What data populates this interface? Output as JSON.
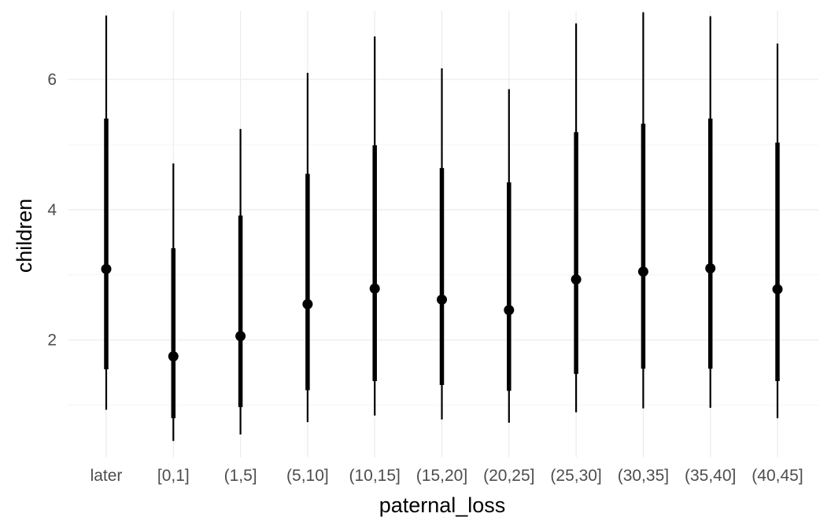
{
  "chart_data": {
    "type": "pointrange",
    "xlabel": "paternal_loss",
    "ylabel": "children",
    "categories": [
      "later",
      "[0,1]",
      "(1,5]",
      "(5,10]",
      "(10,15]",
      "(15,20]",
      "(20,25]",
      "(25,30]",
      "(30,35]",
      "(35,40]",
      "(40,45]"
    ],
    "y_ticks": [
      2,
      4,
      6
    ],
    "ylim": [
      0.2,
      7.05
    ],
    "grid": true,
    "legend": "none",
    "series": [
      {
        "point": [
          3.09,
          1.75,
          2.06,
          2.55,
          2.79,
          2.62,
          2.46,
          2.93,
          3.05,
          3.1,
          2.78
        ],
        "inner_low": [
          1.55,
          0.8,
          0.97,
          1.23,
          1.37,
          1.31,
          1.22,
          1.48,
          1.56,
          1.56,
          1.37
        ],
        "inner_high": [
          5.4,
          3.41,
          3.91,
          4.55,
          4.99,
          4.64,
          4.42,
          5.19,
          5.32,
          5.4,
          5.03
        ],
        "outer_low": [
          0.93,
          0.45,
          0.55,
          0.74,
          0.84,
          0.78,
          0.73,
          0.89,
          0.95,
          0.96,
          0.8
        ],
        "outer_high": [
          6.98,
          4.71,
          5.24,
          6.1,
          6.66,
          6.17,
          5.85,
          6.86,
          7.03,
          6.97,
          6.55
        ]
      }
    ],
    "colors": {
      "mark": "#000000",
      "grid": "#ebebeb",
      "tick_text": "#4d4d4d"
    }
  }
}
